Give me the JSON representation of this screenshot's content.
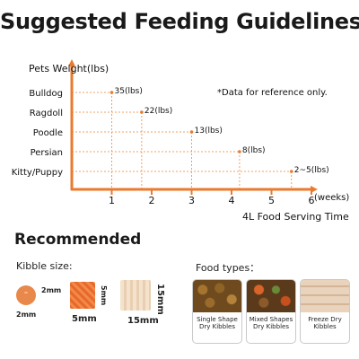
{
  "page": {
    "title": "Suggested Feeding Guidelines"
  },
  "chart_data": {
    "type": "scatter",
    "ylabel": "Pets Weight(lbs)",
    "xlabel": "4L Food Serving Time",
    "x_unit": "(weeks)",
    "xlim": [
      0,
      6
    ],
    "xticks": [
      1,
      2,
      3,
      4,
      5,
      6
    ],
    "note": "*Data for reference only.",
    "categories": [
      "Bulldog",
      "Ragdoll",
      "Poodle",
      "Persian",
      "Kitty/Puppy"
    ],
    "points": [
      {
        "category": "Bulldog",
        "x": 1,
        "label": "35(lbs)"
      },
      {
        "category": "Ragdoll",
        "x": 1.75,
        "label": "22(lbs)"
      },
      {
        "category": "Poodle",
        "x": 3,
        "label": "13(lbs)"
      },
      {
        "category": "Persian",
        "x": 4.2,
        "label": "8(lbs)"
      },
      {
        "category": "Kitty/Puppy",
        "x": 5.5,
        "label": "2~5(lbs)"
      }
    ],
    "colors": {
      "axis": "#ea7a2c",
      "guide": "#f0a060"
    }
  },
  "recommended": {
    "title": "Recommended",
    "kibble_size_label": "Kibble size:",
    "food_types_label": "Food types：",
    "kibbles": [
      {
        "size": "2mm",
        "color": "#e8884a"
      },
      {
        "size": "5mm",
        "color": "#e86a2a"
      },
      {
        "size": "15mm",
        "color": "#f2dcc4"
      }
    ],
    "food_types": [
      {
        "line1": "Single Shape",
        "line2": "Dry Kibbles"
      },
      {
        "line1": "Mixed Shapes",
        "line2": "Dry Kibbles"
      },
      {
        "line1": "Freeze Dry",
        "line2": "Kibbles"
      }
    ]
  }
}
